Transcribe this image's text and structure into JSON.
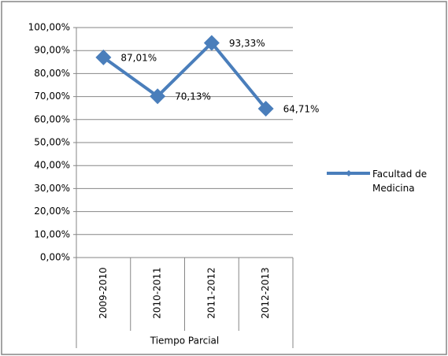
{
  "chart_data": {
    "type": "line",
    "categories": [
      "2009-2010",
      "2010-2011",
      "2011-2012",
      "2012-2013"
    ],
    "category_group": "Tiempo Parcial",
    "series": [
      {
        "name": "Facultad de Medicina",
        "color": "#4a7ebb",
        "values": [
          87.01,
          70.13,
          93.33,
          64.71
        ],
        "value_labels": [
          "87,01%",
          "70,13%",
          "93,33%",
          "64,71%"
        ]
      }
    ],
    "ylim": [
      0,
      100
    ],
    "yticks": [
      {
        "value": 0,
        "label": "0,00%"
      },
      {
        "value": 10,
        "label": "10,00%"
      },
      {
        "value": 20,
        "label": "20,00%"
      },
      {
        "value": 30,
        "label": "30,00%"
      },
      {
        "value": 40,
        "label": "40,00%"
      },
      {
        "value": 50,
        "label": "50,00%"
      },
      {
        "value": 60,
        "label": "60,00%"
      },
      {
        "value": 70,
        "label": "70,00%"
      },
      {
        "value": 80,
        "label": "80,00%"
      },
      {
        "value": 90,
        "label": "90,00%"
      },
      {
        "value": 100,
        "label": "100,00%"
      }
    ],
    "grid": true,
    "legend": "right"
  }
}
